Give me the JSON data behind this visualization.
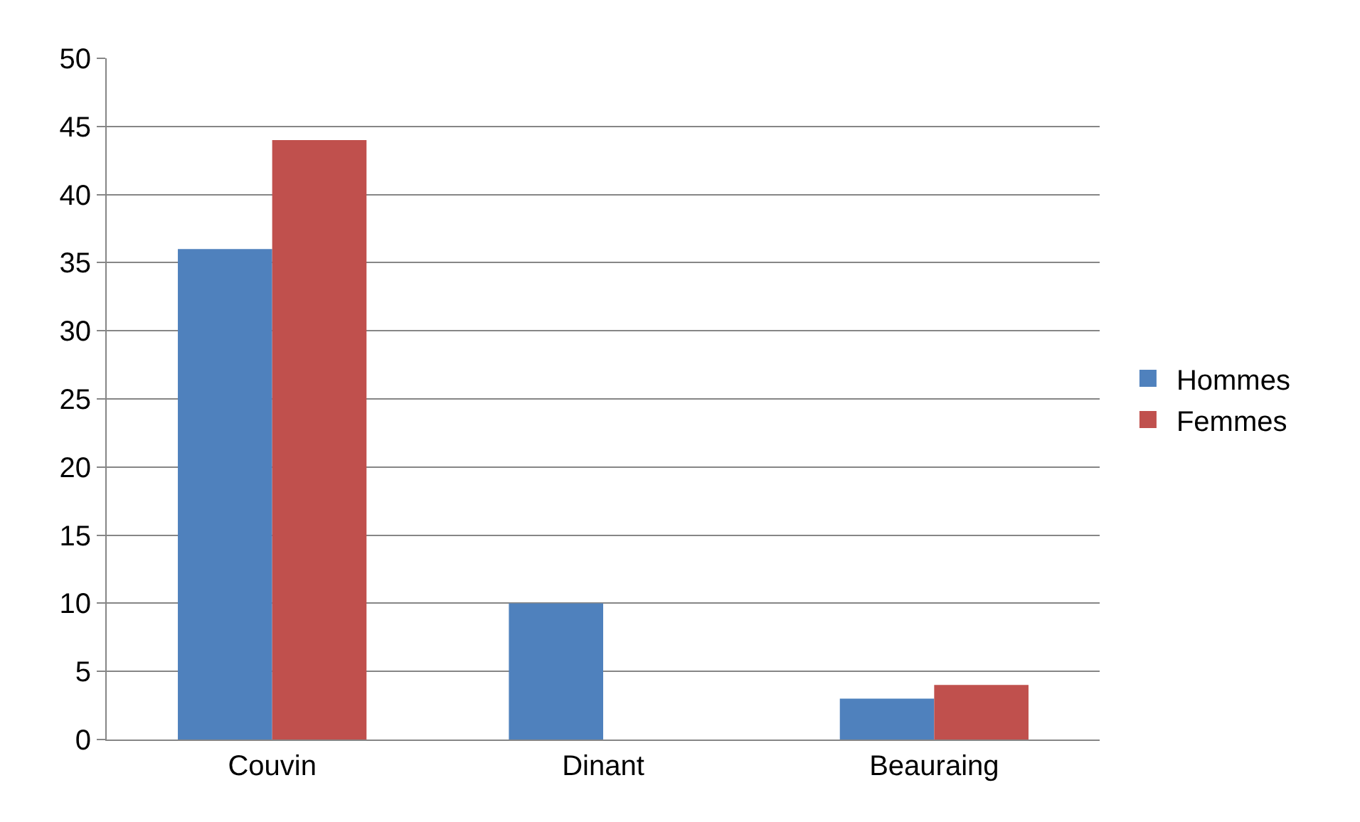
{
  "chart_data": {
    "type": "bar",
    "categories": [
      "Couvin",
      "Dinant",
      "Beauraing"
    ],
    "series": [
      {
        "name": "Hommes",
        "color": "#4f81bd",
        "values": [
          36,
          10,
          3
        ]
      },
      {
        "name": "Femmes",
        "color": "#c0504d",
        "values": [
          44,
          0,
          4
        ]
      }
    ],
    "ylim": [
      0,
      50
    ],
    "yticks": [
      0,
      5,
      10,
      15,
      20,
      25,
      30,
      35,
      40,
      45,
      50
    ],
    "grid": "y",
    "legend": "right"
  }
}
